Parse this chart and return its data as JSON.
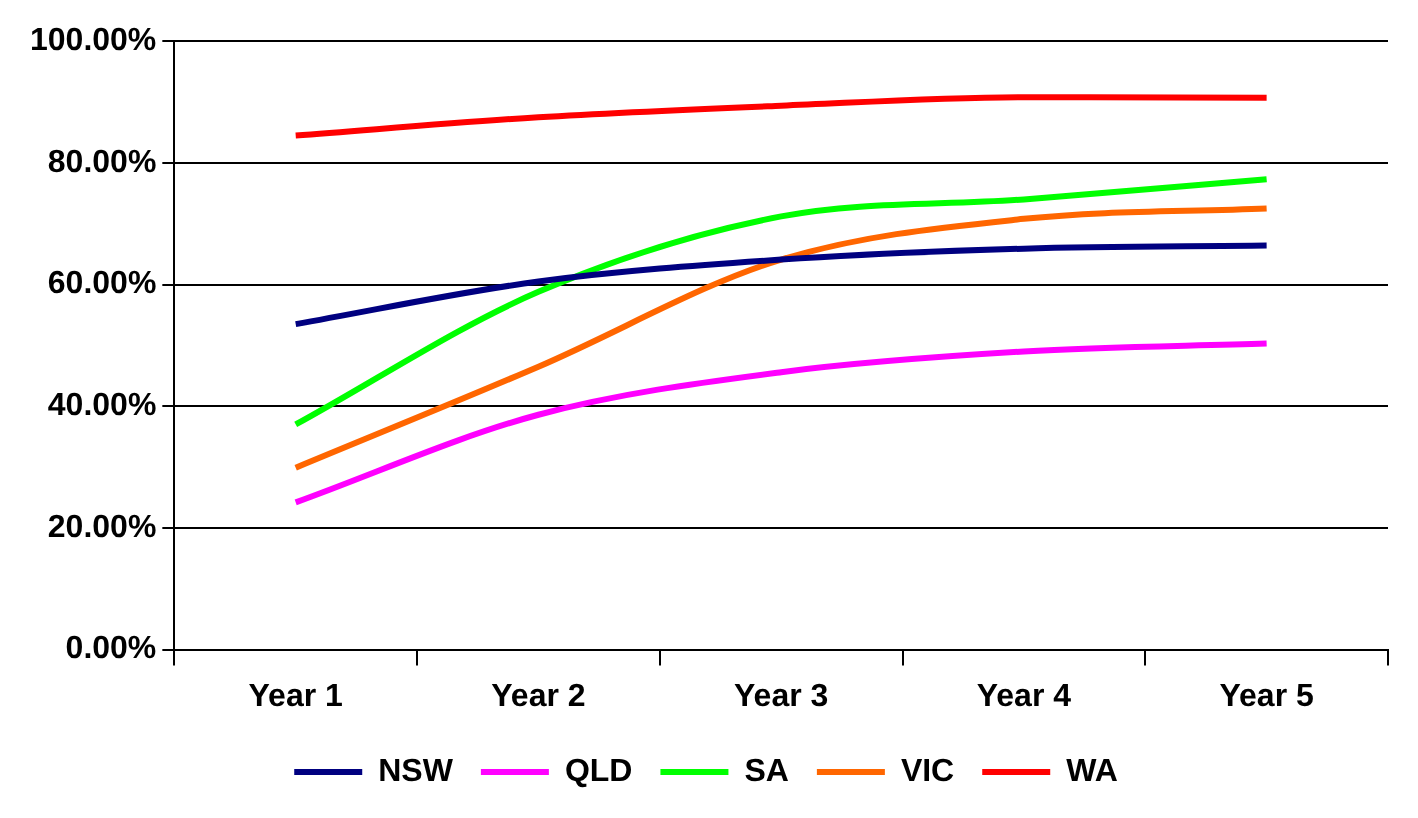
{
  "chart_data": {
    "type": "line",
    "categories": [
      "Year 1",
      "Year 2",
      "Year 3",
      "Year 4",
      "Year 5"
    ],
    "series": [
      {
        "name": "NSW",
        "color": "#000080",
        "values": [
          53.5,
          60.5,
          64.1,
          65.9,
          66.4
        ]
      },
      {
        "name": "QLD",
        "color": "#ff00ff",
        "values": [
          24.2,
          38.6,
          45.6,
          49.0,
          50.3
        ]
      },
      {
        "name": "SA",
        "color": "#00ff00",
        "values": [
          37.0,
          58.8,
          71.2,
          74.0,
          77.3
        ]
      },
      {
        "name": "VIC",
        "color": "#ff6600",
        "values": [
          29.9,
          46.5,
          64.1,
          70.8,
          72.5
        ]
      },
      {
        "name": "WA",
        "color": "#ff0000",
        "values": [
          84.5,
          87.5,
          89.4,
          90.8,
          90.7
        ]
      }
    ],
    "ylim": [
      0,
      100
    ],
    "yticks": [
      {
        "value": 0,
        "label": "0.00%"
      },
      {
        "value": 20,
        "label": "20.00%"
      },
      {
        "value": 40,
        "label": "40.00%"
      },
      {
        "value": 60,
        "label": "60.00%"
      },
      {
        "value": 80,
        "label": "80.00%"
      },
      {
        "value": 100,
        "label": "100.00%"
      }
    ],
    "grid": "y",
    "legend": "bottom",
    "marker": "none",
    "line_style": "solid"
  }
}
